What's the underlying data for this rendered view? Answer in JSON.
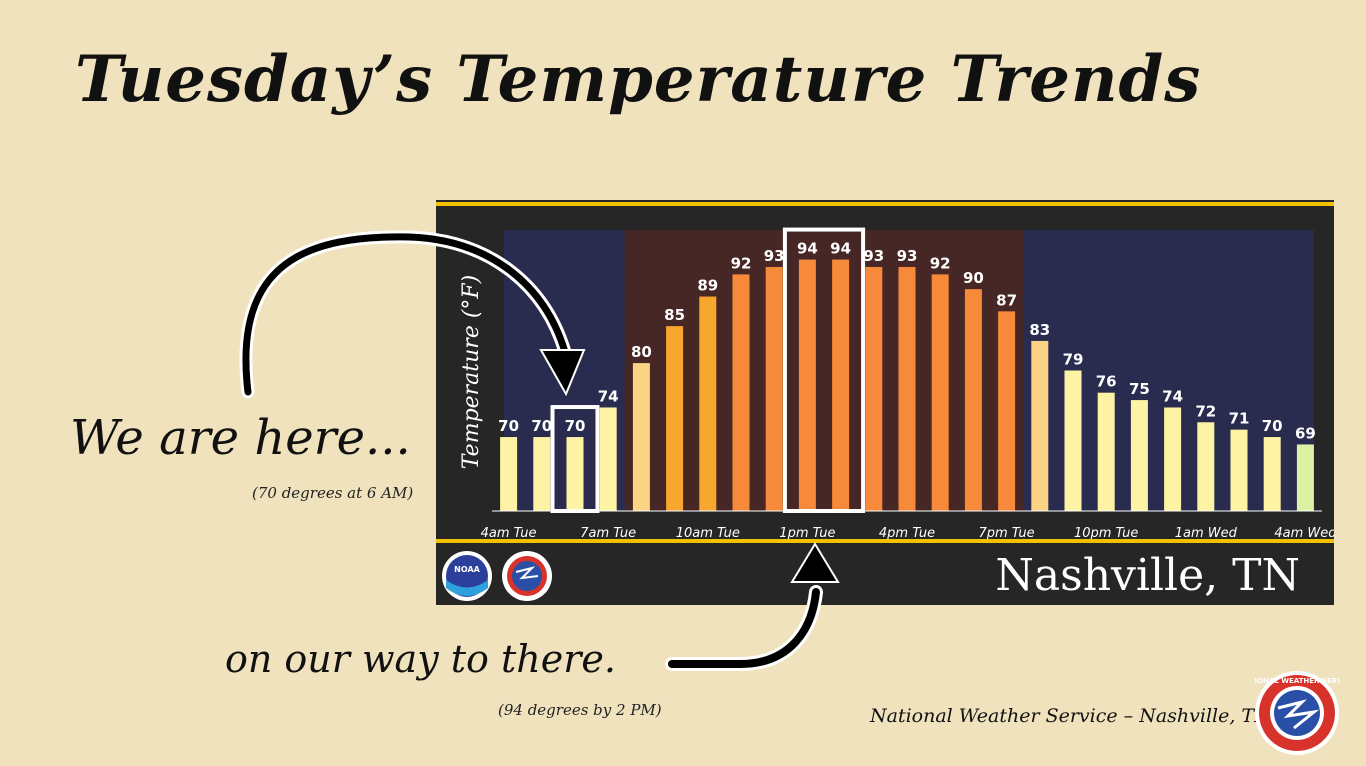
{
  "title": "Tuesday’s Temperature Trends",
  "annotations": {
    "here": "We are here...",
    "here_note": "(70 degrees at 6 AM)",
    "there": "on our way to there.",
    "there_note": "(94 degrees by 2 PM)"
  },
  "footer": {
    "credit": "National Weather Service – Nashville, TN",
    "location": "Nashville, TN"
  },
  "logos": {
    "noaa": "NOAA",
    "nws_ring": "NATIONAL WEATHER SERVICE"
  },
  "colors": {
    "page_bg": "#efe2bd",
    "panel_bg": "#262626",
    "night_band": "#2a2c4f",
    "day_band": "#472626",
    "accent_line": "#f2c200",
    "hot": "#f6893a",
    "warm": "#f7a72e",
    "mild": "#fdd486",
    "cool": "#fef3a4",
    "coolest": "#dcf1a4"
  },
  "chart_data": {
    "type": "bar",
    "ylabel": "Temperature (°F)",
    "categories": [
      "4am Tue",
      "5am Tue",
      "6am Tue",
      "7am Tue",
      "8am Tue",
      "9am Tue",
      "10am Tue",
      "11am Tue",
      "12pm Tue",
      "1pm Tue",
      "2pm Tue",
      "3pm Tue",
      "4pm Tue",
      "5pm Tue",
      "6pm Tue",
      "7pm Tue",
      "8pm Tue",
      "9pm Tue",
      "10pm Tue",
      "11pm Tue",
      "12am Wed",
      "1am Wed",
      "2am Wed",
      "3am Wed",
      "4am Wed"
    ],
    "values": [
      70,
      70,
      70,
      74,
      80,
      85,
      89,
      92,
      93,
      94,
      94,
      93,
      93,
      92,
      90,
      87,
      83,
      79,
      76,
      75,
      74,
      72,
      71,
      70,
      69
    ],
    "tick_labels": [
      "4am Tue",
      "7am Tue",
      "10am Tue",
      "1pm Tue",
      "4pm Tue",
      "7pm Tue",
      "10pm Tue",
      "1am Wed",
      "4am Wed"
    ],
    "ylim": [
      60,
      98
    ],
    "highlighted": [
      "6am Tue",
      "1pm Tue",
      "2pm Tue"
    ],
    "grid": false
  }
}
